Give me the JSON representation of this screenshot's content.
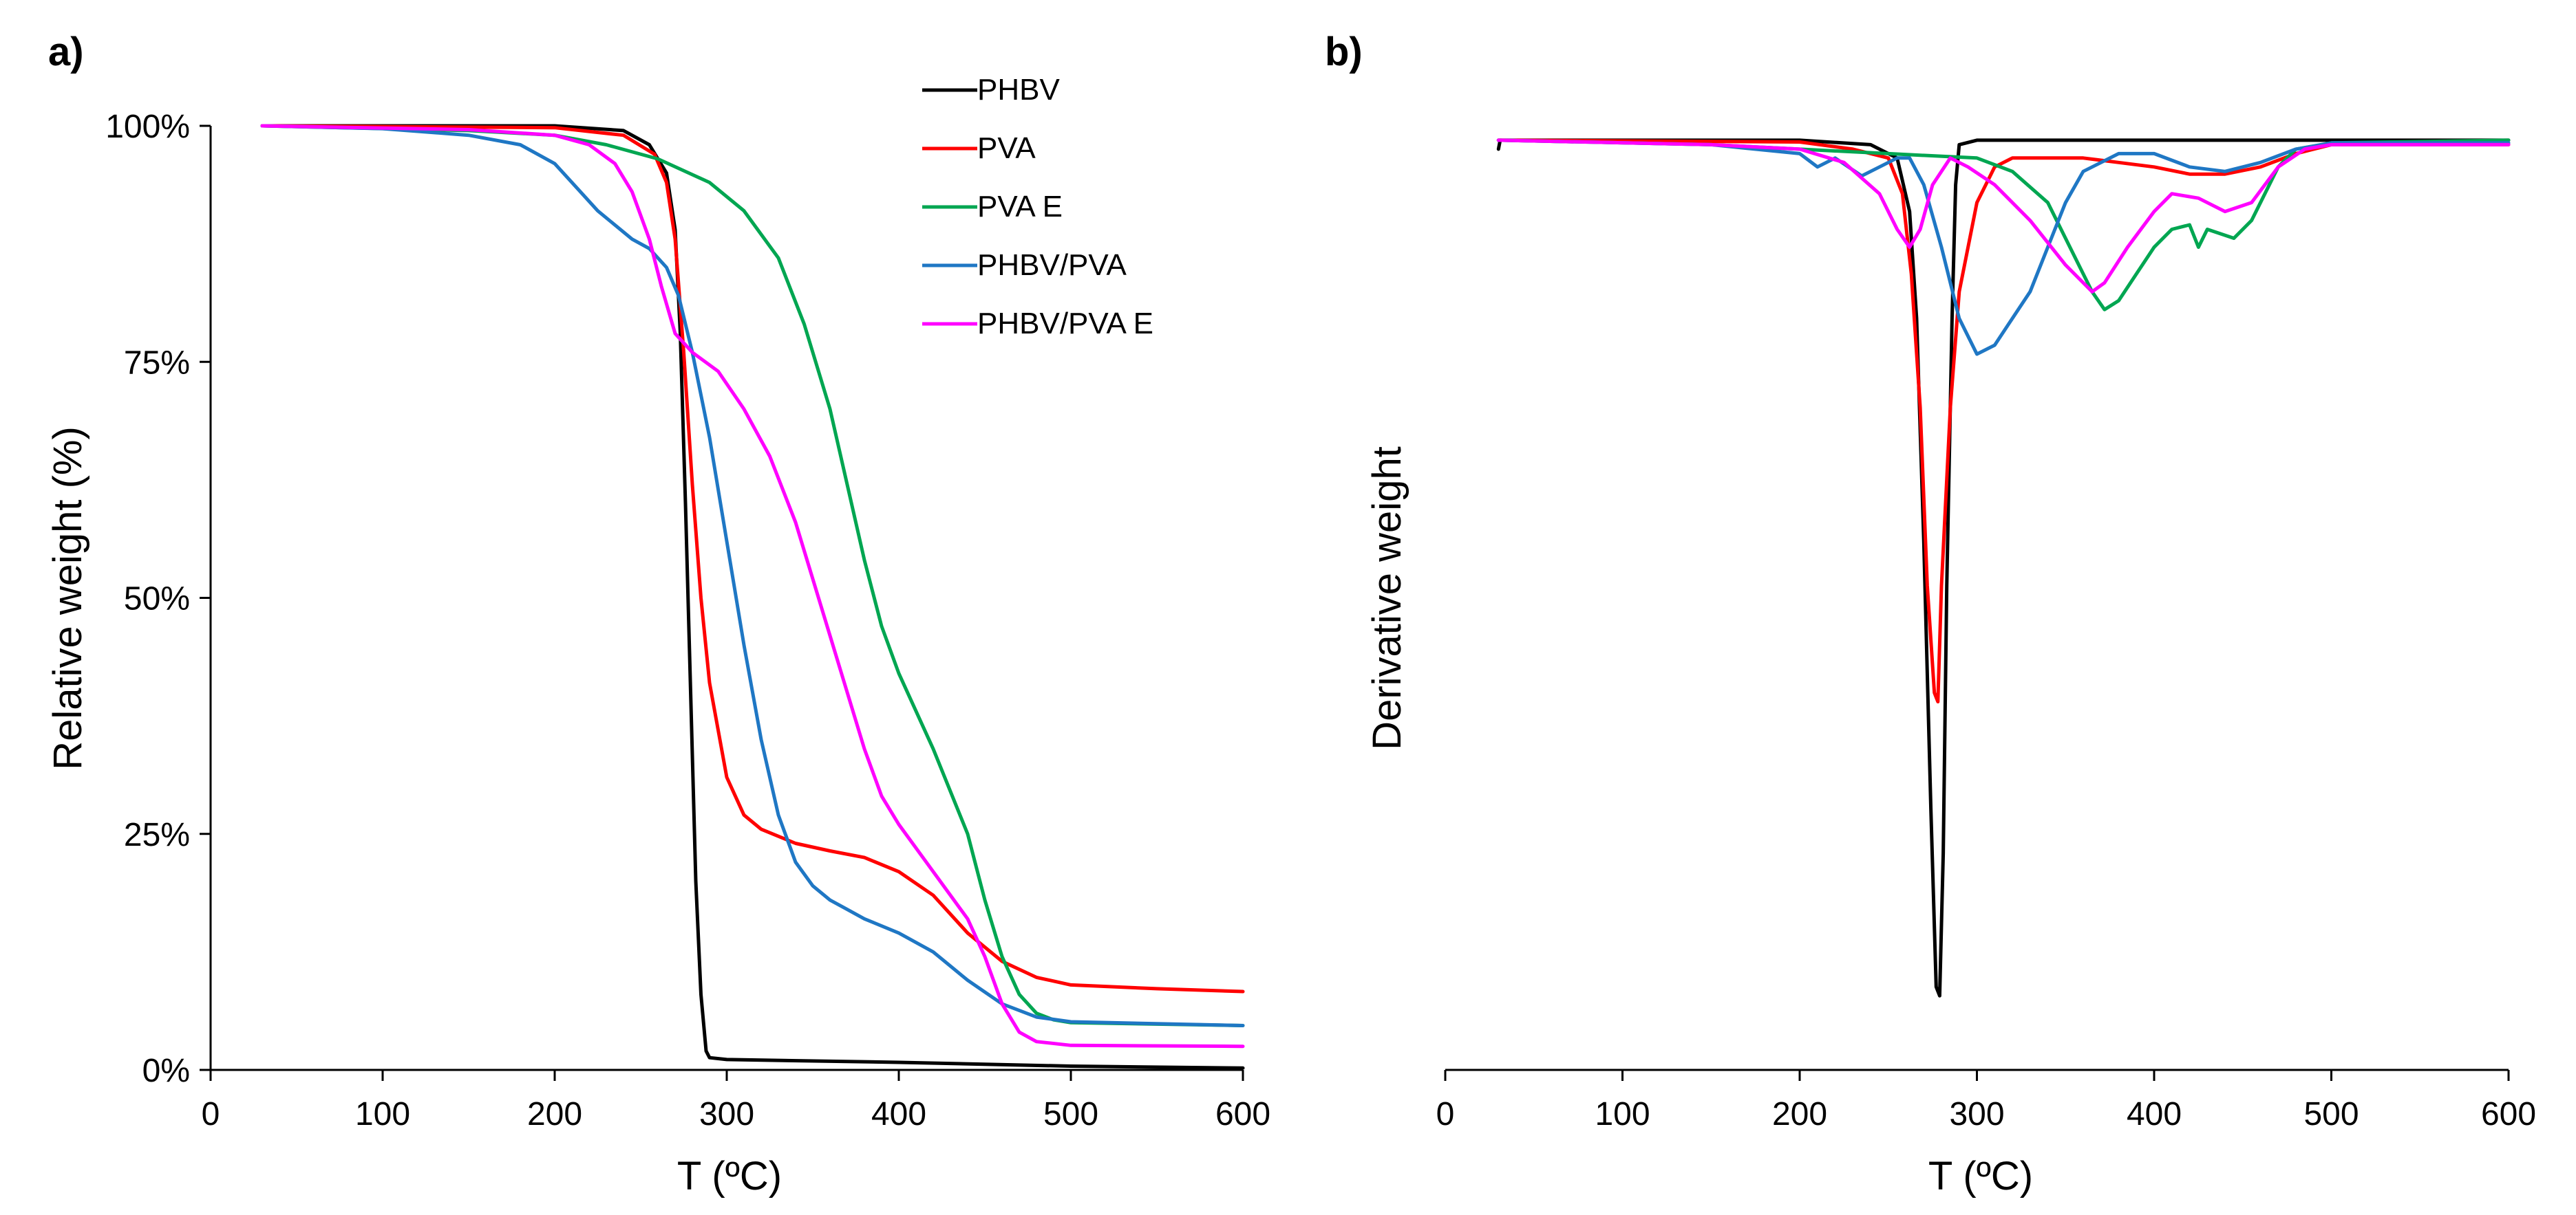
{
  "chart_data": [
    {
      "panel": "a)",
      "type": "line",
      "xlabel": "T (ºC)",
      "ylabel": "Relative weight (%)",
      "xlim": [
        0,
        600
      ],
      "ylim": [
        0,
        100
      ],
      "xticks": [
        0,
        100,
        200,
        300,
        400,
        500,
        600
      ],
      "yticks": [
        0,
        25,
        50,
        75,
        100
      ],
      "ytick_labels": [
        "0%",
        "25%",
        "50%",
        "75%",
        "100%"
      ],
      "legend_position": "top-right",
      "series": [
        {
          "name": "PHBV",
          "color": "#000000",
          "points": [
            [
              30,
              100
            ],
            [
              200,
              100
            ],
            [
              240,
              99.5
            ],
            [
              255,
              98
            ],
            [
              265,
              95
            ],
            [
              270,
              89
            ],
            [
              273,
              78
            ],
            [
              276,
              60
            ],
            [
              279,
              40
            ],
            [
              282,
              20
            ],
            [
              285,
              8
            ],
            [
              288,
              2
            ],
            [
              290,
              1.3
            ],
            [
              300,
              1.1
            ],
            [
              400,
              0.8
            ],
            [
              500,
              0.4
            ],
            [
              600,
              0.2
            ]
          ]
        },
        {
          "name": "PVA",
          "color": "#ff0000",
          "points": [
            [
              30,
              100
            ],
            [
              200,
              99.8
            ],
            [
              240,
              99
            ],
            [
              258,
              97
            ],
            [
              265,
              94
            ],
            [
              270,
              88
            ],
            [
              275,
              76
            ],
            [
              280,
              62
            ],
            [
              285,
              50
            ],
            [
              290,
              41
            ],
            [
              300,
              31
            ],
            [
              310,
              27
            ],
            [
              320,
              25.5
            ],
            [
              340,
              24
            ],
            [
              360,
              23.2
            ],
            [
              380,
              22.5
            ],
            [
              400,
              21
            ],
            [
              420,
              18.5
            ],
            [
              440,
              14.5
            ],
            [
              460,
              11.5
            ],
            [
              480,
              9.8
            ],
            [
              500,
              9
            ],
            [
              550,
              8.6
            ],
            [
              600,
              8.3
            ]
          ]
        },
        {
          "name": "PVA E",
          "color": "#00a651",
          "points": [
            [
              30,
              100
            ],
            [
              150,
              99.5
            ],
            [
              200,
              99
            ],
            [
              230,
              98
            ],
            [
              260,
              96.5
            ],
            [
              290,
              94
            ],
            [
              310,
              91
            ],
            [
              330,
              86
            ],
            [
              345,
              79
            ],
            [
              360,
              70
            ],
            [
              370,
              62
            ],
            [
              380,
              54
            ],
            [
              390,
              47
            ],
            [
              400,
              42
            ],
            [
              420,
              34
            ],
            [
              440,
              25
            ],
            [
              450,
              18
            ],
            [
              460,
              12
            ],
            [
              470,
              8
            ],
            [
              480,
              6
            ],
            [
              490,
              5.3
            ],
            [
              500,
              5
            ],
            [
              600,
              4.7
            ]
          ]
        },
        {
          "name": "PHBV/PVA",
          "color": "#1f77c4",
          "points": [
            [
              30,
              100
            ],
            [
              100,
              99.7
            ],
            [
              150,
              99
            ],
            [
              180,
              98
            ],
            [
              200,
              96
            ],
            [
              215,
              93
            ],
            [
              225,
              91
            ],
            [
              235,
              89.5
            ],
            [
              245,
              88
            ],
            [
              255,
              87
            ],
            [
              265,
              85
            ],
            [
              272,
              82
            ],
            [
              280,
              76
            ],
            [
              290,
              67
            ],
            [
              300,
              56
            ],
            [
              310,
              45
            ],
            [
              320,
              35
            ],
            [
              330,
              27
            ],
            [
              340,
              22
            ],
            [
              350,
              19.5
            ],
            [
              360,
              18
            ],
            [
              370,
              17
            ],
            [
              380,
              16
            ],
            [
              400,
              14.5
            ],
            [
              420,
              12.5
            ],
            [
              440,
              9.5
            ],
            [
              460,
              7
            ],
            [
              480,
              5.6
            ],
            [
              500,
              5.1
            ],
            [
              600,
              4.7
            ]
          ]
        },
        {
          "name": "PHBV/PVA E",
          "color": "#ff00ff",
          "points": [
            [
              30,
              100
            ],
            [
              150,
              99.6
            ],
            [
              200,
              99
            ],
            [
              220,
              98
            ],
            [
              235,
              96
            ],
            [
              245,
              93
            ],
            [
              255,
              88
            ],
            [
              262,
              83
            ],
            [
              270,
              78
            ],
            [
              280,
              76
            ],
            [
              295,
              74
            ],
            [
              310,
              70
            ],
            [
              325,
              65
            ],
            [
              340,
              58
            ],
            [
              350,
              52
            ],
            [
              360,
              46
            ],
            [
              370,
              40
            ],
            [
              380,
              34
            ],
            [
              390,
              29
            ],
            [
              400,
              26
            ],
            [
              420,
              21
            ],
            [
              440,
              16
            ],
            [
              450,
              12
            ],
            [
              460,
              7
            ],
            [
              470,
              4
            ],
            [
              480,
              3
            ],
            [
              500,
              2.6
            ],
            [
              600,
              2.5
            ]
          ]
        }
      ]
    },
    {
      "panel": "b)",
      "type": "line",
      "xlabel": "T (ºC)",
      "ylabel": "Derivative weight",
      "xlim": [
        0,
        600
      ],
      "ylim": [
        -1,
        0.02
      ],
      "xticks": [
        0,
        100,
        200,
        300,
        400,
        500,
        600
      ],
      "series": [
        {
          "name": "PHBV",
          "color": "#000000",
          "points": [
            [
              30,
              -0.01
            ],
            [
              31,
              0
            ],
            [
              200,
              0
            ],
            [
              240,
              -0.005
            ],
            [
              255,
              -0.02
            ],
            [
              262,
              -0.08
            ],
            [
              266,
              -0.2
            ],
            [
              270,
              -0.45
            ],
            [
              274,
              -0.75
            ],
            [
              277,
              -0.95
            ],
            [
              279,
              -0.96
            ],
            [
              281,
              -0.8
            ],
            [
              283,
              -0.5
            ],
            [
              286,
              -0.2
            ],
            [
              288,
              -0.05
            ],
            [
              290,
              -0.005
            ],
            [
              300,
              0
            ],
            [
              600,
              0
            ]
          ]
        },
        {
          "name": "PVA",
          "color": "#ff0000",
          "points": [
            [
              30,
              0
            ],
            [
              200,
              -0.002
            ],
            [
              230,
              -0.01
            ],
            [
              250,
              -0.02
            ],
            [
              258,
              -0.06
            ],
            [
              263,
              -0.15
            ],
            [
              268,
              -0.3
            ],
            [
              272,
              -0.5
            ],
            [
              276,
              -0.62
            ],
            [
              278,
              -0.63
            ],
            [
              280,
              -0.5
            ],
            [
              285,
              -0.3
            ],
            [
              290,
              -0.17
            ],
            [
              300,
              -0.07
            ],
            [
              310,
              -0.03
            ],
            [
              320,
              -0.02
            ],
            [
              340,
              -0.02
            ],
            [
              360,
              -0.02
            ],
            [
              380,
              -0.025
            ],
            [
              400,
              -0.03
            ],
            [
              420,
              -0.038
            ],
            [
              440,
              -0.038
            ],
            [
              460,
              -0.03
            ],
            [
              480,
              -0.015
            ],
            [
              500,
              -0.005
            ],
            [
              600,
              -0.005
            ]
          ]
        },
        {
          "name": "PVA E",
          "color": "#00a651",
          "points": [
            [
              30,
              0
            ],
            [
              150,
              -0.005
            ],
            [
              200,
              -0.01
            ],
            [
              250,
              -0.015
            ],
            [
              300,
              -0.02
            ],
            [
              320,
              -0.035
            ],
            [
              340,
              -0.07
            ],
            [
              355,
              -0.13
            ],
            [
              365,
              -0.17
            ],
            [
              372,
              -0.19
            ],
            [
              380,
              -0.18
            ],
            [
              390,
              -0.15
            ],
            [
              400,
              -0.12
            ],
            [
              410,
              -0.1
            ],
            [
              420,
              -0.095
            ],
            [
              425,
              -0.12
            ],
            [
              430,
              -0.1
            ],
            [
              445,
              -0.11
            ],
            [
              455,
              -0.09
            ],
            [
              470,
              -0.03
            ],
            [
              480,
              -0.01
            ],
            [
              500,
              -0.003
            ],
            [
              600,
              0
            ]
          ]
        },
        {
          "name": "PHBV/PVA",
          "color": "#1f77c4",
          "points": [
            [
              30,
              0
            ],
            [
              150,
              -0.005
            ],
            [
              200,
              -0.015
            ],
            [
              210,
              -0.03
            ],
            [
              220,
              -0.02
            ],
            [
              235,
              -0.04
            ],
            [
              245,
              -0.03
            ],
            [
              255,
              -0.02
            ],
            [
              262,
              -0.02
            ],
            [
              270,
              -0.05
            ],
            [
              280,
              -0.12
            ],
            [
              290,
              -0.2
            ],
            [
              300,
              -0.24
            ],
            [
              310,
              -0.23
            ],
            [
              320,
              -0.2
            ],
            [
              330,
              -0.17
            ],
            [
              340,
              -0.12
            ],
            [
              350,
              -0.07
            ],
            [
              360,
              -0.035
            ],
            [
              380,
              -0.015
            ],
            [
              400,
              -0.015
            ],
            [
              420,
              -0.03
            ],
            [
              440,
              -0.035
            ],
            [
              460,
              -0.025
            ],
            [
              480,
              -0.01
            ],
            [
              500,
              -0.003
            ],
            [
              600,
              -0.003
            ]
          ]
        },
        {
          "name": "PHBV/PVA E",
          "color": "#ff00ff",
          "points": [
            [
              30,
              0
            ],
            [
              150,
              -0.005
            ],
            [
              200,
              -0.01
            ],
            [
              225,
              -0.025
            ],
            [
              245,
              -0.06
            ],
            [
              255,
              -0.1
            ],
            [
              262,
              -0.12
            ],
            [
              268,
              -0.1
            ],
            [
              275,
              -0.05
            ],
            [
              285,
              -0.02
            ],
            [
              295,
              -0.03
            ],
            [
              310,
              -0.05
            ],
            [
              330,
              -0.09
            ],
            [
              350,
              -0.14
            ],
            [
              365,
              -0.17
            ],
            [
              372,
              -0.16
            ],
            [
              385,
              -0.12
            ],
            [
              400,
              -0.08
            ],
            [
              410,
              -0.06
            ],
            [
              425,
              -0.065
            ],
            [
              440,
              -0.08
            ],
            [
              455,
              -0.07
            ],
            [
              470,
              -0.03
            ],
            [
              485,
              -0.01
            ],
            [
              500,
              -0.005
            ],
            [
              600,
              -0.005
            ]
          ]
        }
      ]
    }
  ]
}
